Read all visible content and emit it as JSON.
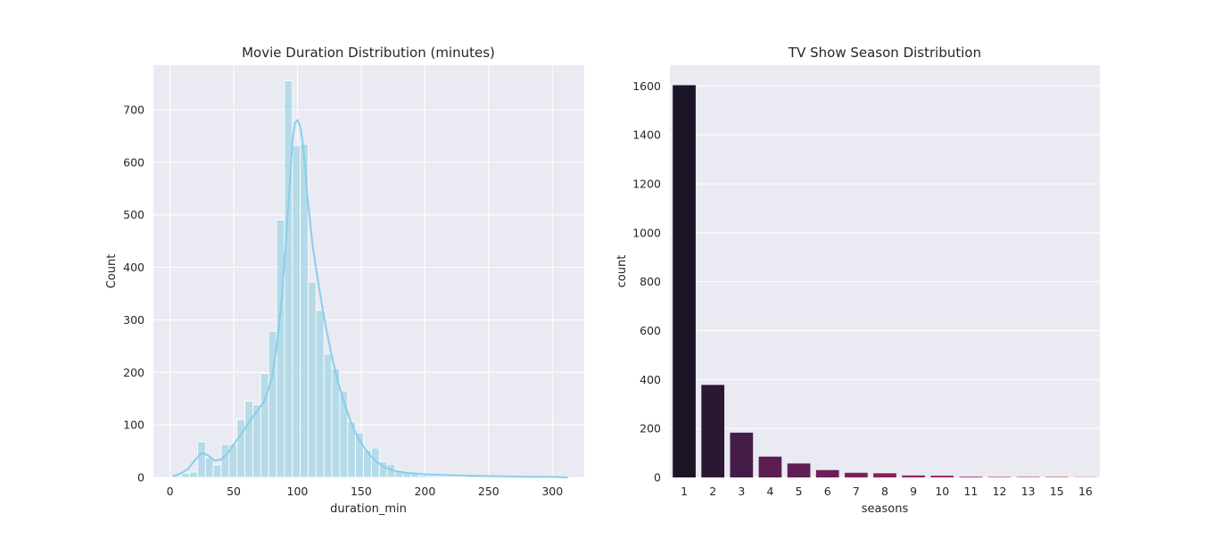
{
  "chart_data": [
    {
      "type": "histogram",
      "title": "Movie Duration Distribution (minutes)",
      "xlabel": "duration_min",
      "ylabel": "Count",
      "xlim": [
        -13,
        325
      ],
      "ylim": [
        0,
        785
      ],
      "xticks": [
        0,
        50,
        100,
        150,
        200,
        250,
        300
      ],
      "yticks": [
        0,
        100,
        200,
        300,
        400,
        500,
        600,
        700
      ],
      "grid": true,
      "bar_color": "#add8e6",
      "kde_color": "#87ceeb",
      "bin_width": 6.2,
      "bin_start": 3,
      "counts": [
        3,
        8,
        10,
        68,
        38,
        24,
        63,
        63,
        110,
        145,
        138,
        198,
        278,
        490,
        755,
        632,
        635,
        372,
        318,
        235,
        207,
        165,
        106,
        85,
        52,
        56,
        30,
        25,
        14,
        10,
        7,
        4,
        3,
        2,
        2,
        1,
        1,
        4,
        3,
        2,
        1,
        1,
        1,
        0,
        1,
        1,
        0,
        1,
        1,
        0
      ],
      "kde": [
        [
          2,
          2
        ],
        [
          8,
          7
        ],
        [
          14,
          16
        ],
        [
          20,
          34
        ],
        [
          25,
          47
        ],
        [
          30,
          42
        ],
        [
          35,
          32
        ],
        [
          40,
          34
        ],
        [
          45,
          45
        ],
        [
          50,
          63
        ],
        [
          56,
          83
        ],
        [
          62,
          105
        ],
        [
          68,
          125
        ],
        [
          74,
          145
        ],
        [
          80,
          190
        ],
        [
          84,
          255
        ],
        [
          88,
          350
        ],
        [
          91,
          450
        ],
        [
          94,
          560
        ],
        [
          96,
          640
        ],
        [
          98,
          675
        ],
        [
          100,
          680
        ],
        [
          102,
          670
        ],
        [
          104,
          640
        ],
        [
          106,
          590
        ],
        [
          108,
          530
        ],
        [
          112,
          440
        ],
        [
          117,
          360
        ],
        [
          122,
          290
        ],
        [
          127,
          230
        ],
        [
          132,
          180
        ],
        [
          137,
          140
        ],
        [
          142,
          105
        ],
        [
          147,
          78
        ],
        [
          152,
          58
        ],
        [
          157,
          42
        ],
        [
          162,
          30
        ],
        [
          168,
          20
        ],
        [
          175,
          13
        ],
        [
          185,
          9
        ],
        [
          200,
          6
        ],
        [
          220,
          4
        ],
        [
          240,
          3
        ],
        [
          260,
          2
        ],
        [
          280,
          1
        ],
        [
          300,
          1
        ],
        [
          312,
          0
        ]
      ]
    },
    {
      "type": "bar",
      "title": "TV Show Season Distribution",
      "xlabel": "seasons",
      "ylabel": "count",
      "ylim": [
        0,
        1685
      ],
      "yticks": [
        0,
        200,
        400,
        600,
        800,
        1000,
        1200,
        1400,
        1600
      ],
      "grid": true,
      "categories": [
        "1",
        "2",
        "3",
        "4",
        "5",
        "6",
        "7",
        "8",
        "9",
        "10",
        "11",
        "12",
        "13",
        "15",
        "16"
      ],
      "values": [
        1603,
        378,
        183,
        85,
        57,
        30,
        19,
        17,
        8,
        7,
        3,
        2,
        2,
        2,
        1
      ],
      "colors": [
        "#1b1427",
        "#2c1733",
        "#451c47",
        "#5c1e52",
        "#5f1f55",
        "#6d1f5a",
        "#7c1f5d",
        "#87205e",
        "#96205f",
        "#a3215e",
        "#b1225c",
        "#bf2558",
        "#cc2c54",
        "#d7354f",
        "#e1454e"
      ]
    }
  ]
}
